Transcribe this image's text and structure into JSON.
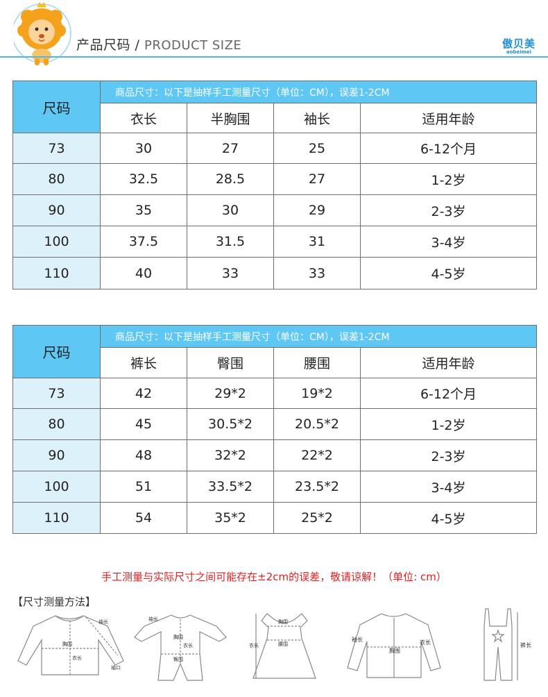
{
  "header": {
    "title_cn": "产品尺码 /",
    "title_en": "PRODUCT SIZE",
    "brand_cn": "傲贝美",
    "brand_en": "aobeimei"
  },
  "table1": {
    "size_label": "尺码",
    "note": "商品尺寸：以下是抽样手工测量尺寸（单位：CM），误差1-2CM",
    "columns": [
      "衣长",
      "半胸围",
      "袖长",
      "适用年龄"
    ],
    "rows": [
      [
        "73",
        "30",
        "27",
        "25",
        "6-12个月"
      ],
      [
        "80",
        "32.5",
        "28.5",
        "27",
        "1-2岁"
      ],
      [
        "90",
        "35",
        "30",
        "29",
        "2-3岁"
      ],
      [
        "100",
        "37.5",
        "31.5",
        "31",
        "3-4岁"
      ],
      [
        "110",
        "40",
        "33",
        "33",
        "4-5岁"
      ]
    ]
  },
  "table2": {
    "size_label": "尺码",
    "note": "商品尺寸：以下是抽样手工测量尺寸（单位：CM），误差1-2CM",
    "columns": [
      "裤长",
      "臀围",
      "腰围",
      "适用年龄"
    ],
    "rows": [
      [
        "73",
        "42",
        "29*2",
        "19*2",
        "6-12个月"
      ],
      [
        "80",
        "45",
        "30.5*2",
        "20.5*2",
        "1-2岁"
      ],
      [
        "90",
        "48",
        "32*2",
        "22*2",
        "2-3岁"
      ],
      [
        "100",
        "51",
        "33.5*2",
        "23.5*2",
        "3-4岁"
      ],
      [
        "110",
        "54",
        "35*2",
        "25*2",
        "4-5岁"
      ]
    ]
  },
  "warning": "手工测量与实际尺寸之间可能存在±2cm的误差，敬请谅解！（单位: cm）",
  "method_title": "【尺寸测量方法】",
  "diagrams": {
    "shirt": {
      "sleeve": "袖长",
      "chest": "胸围",
      "length": "衣长",
      "cuff": "袖口"
    },
    "romper": {
      "sleeve": "袖长",
      "chest": "胸围",
      "length": "衣长",
      "hip": "臀围"
    },
    "dress": {
      "chest": "胸围",
      "waist": "腰围",
      "length": "衣长"
    },
    "jacket": {
      "sleeve": "袖长",
      "length": "衣长",
      "chest": "胸围"
    },
    "overalls": {
      "length": "裤长"
    }
  },
  "colors": {
    "accent": "#5fc7f3",
    "line": "#4db8e8",
    "warn": "#e02020"
  }
}
